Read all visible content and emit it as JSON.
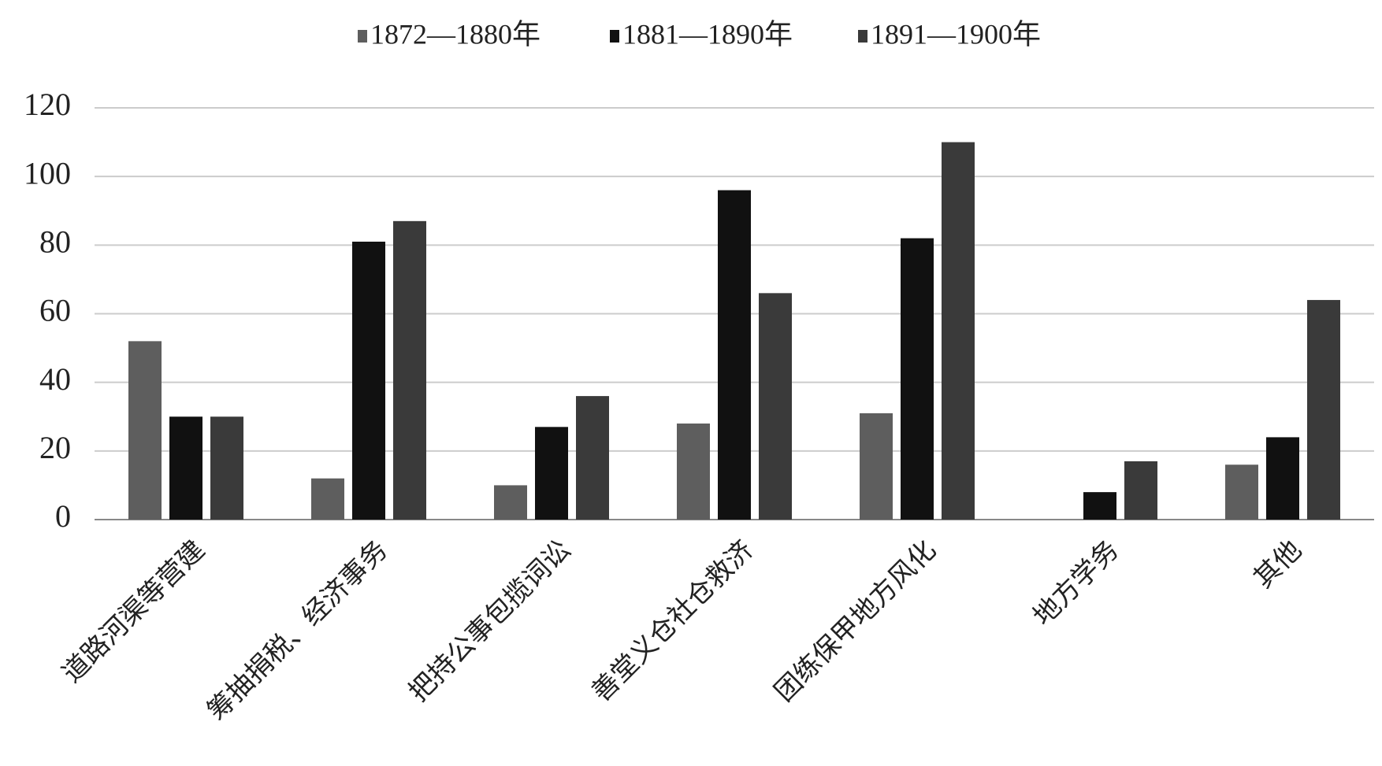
{
  "chart_data": {
    "type": "bar",
    "categories": [
      "道路河渠等营建",
      "筹抽捐税、经济事务",
      "把持公事包揽词讼",
      "善堂义仓社仓救济",
      "团练保甲地方风化",
      "地方学务",
      "其他"
    ],
    "series": [
      {
        "name": "1872—1880年",
        "color": "#5e5e5e",
        "values": [
          52,
          12,
          10,
          28,
          31,
          null,
          16
        ]
      },
      {
        "name": "1881—1890年",
        "color": "#111111",
        "values": [
          30,
          81,
          27,
          96,
          82,
          8,
          24
        ]
      },
      {
        "name": "1891—1900年",
        "color": "#3a3a3a",
        "values": [
          30,
          87,
          36,
          66,
          110,
          17,
          64
        ]
      }
    ],
    "ylim": [
      0,
      120
    ],
    "yticks": [
      0,
      20,
      40,
      60,
      80,
      100,
      120
    ],
    "grid": true,
    "legend": "top"
  }
}
